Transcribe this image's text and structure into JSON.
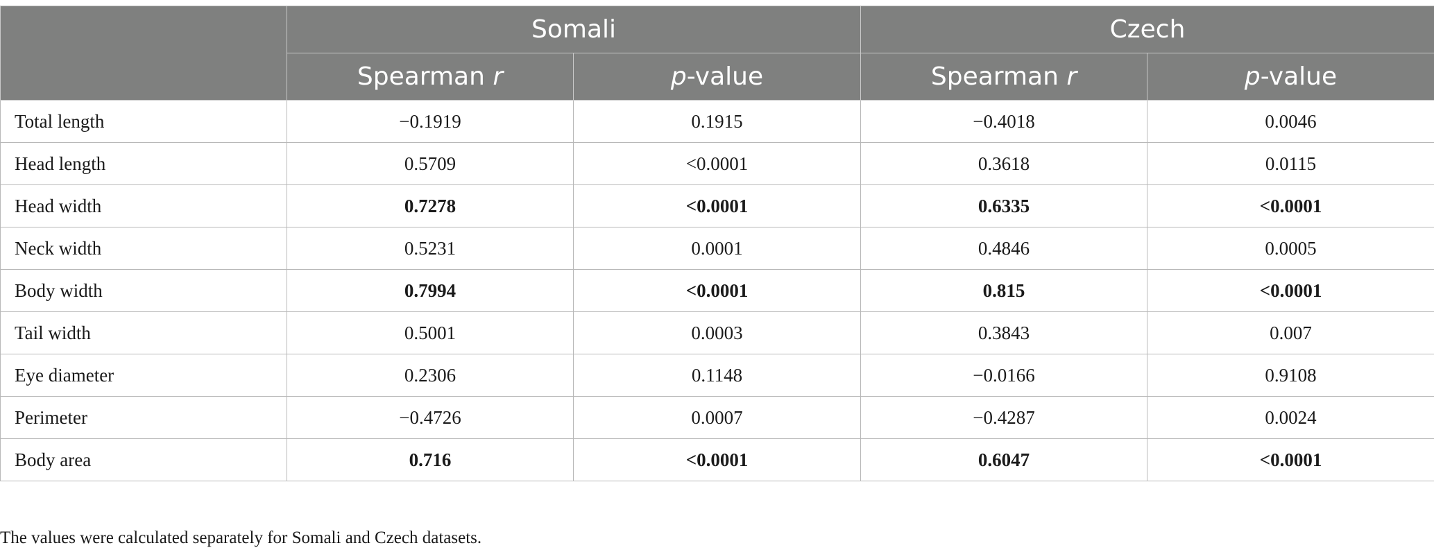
{
  "table": {
    "groups": [
      "Somali",
      "Czech"
    ],
    "subheaders": [
      {
        "prefix": "Spearman ",
        "italic": "r",
        "suffix": ""
      },
      {
        "prefix": "",
        "italic": "p",
        "suffix": "-value"
      },
      {
        "prefix": "Spearman ",
        "italic": "r",
        "suffix": ""
      },
      {
        "prefix": "",
        "italic": "p",
        "suffix": "-value"
      }
    ],
    "rows": [
      {
        "label": "Total length",
        "values": [
          "−0.1919",
          "0.1915",
          "−0.4018",
          "0.0046"
        ],
        "bold": false
      },
      {
        "label": "Head length",
        "values": [
          "0.5709",
          "<0.0001",
          "0.3618",
          "0.0115"
        ],
        "bold": false
      },
      {
        "label": "Head width",
        "values": [
          "0.7278",
          "<0.0001",
          "0.6335",
          "<0.0001"
        ],
        "bold": true
      },
      {
        "label": "Neck width",
        "values": [
          "0.5231",
          "0.0001",
          "0.4846",
          "0.0005"
        ],
        "bold": false
      },
      {
        "label": "Body width",
        "values": [
          "0.7994",
          "<0.0001",
          "0.815",
          "<0.0001"
        ],
        "bold": true
      },
      {
        "label": "Tail width",
        "values": [
          "0.5001",
          "0.0003",
          "0.3843",
          "0.007"
        ],
        "bold": false
      },
      {
        "label": "Eye diameter",
        "values": [
          "0.2306",
          "0.1148",
          "−0.0166",
          "0.9108"
        ],
        "bold": false
      },
      {
        "label": "Perimeter",
        "values": [
          "−0.4726",
          "0.0007",
          "−0.4287",
          "0.0024"
        ],
        "bold": false
      },
      {
        "label": "Body area",
        "values": [
          "0.716",
          "<0.0001",
          "0.6047",
          "<0.0001"
        ],
        "bold": true
      }
    ]
  },
  "footnote": "The values were calculated separately for Somali and Czech datasets.",
  "colors": {
    "header_bg": "#7f807f",
    "header_text": "#ffffff",
    "border": "#b8b8b8"
  }
}
